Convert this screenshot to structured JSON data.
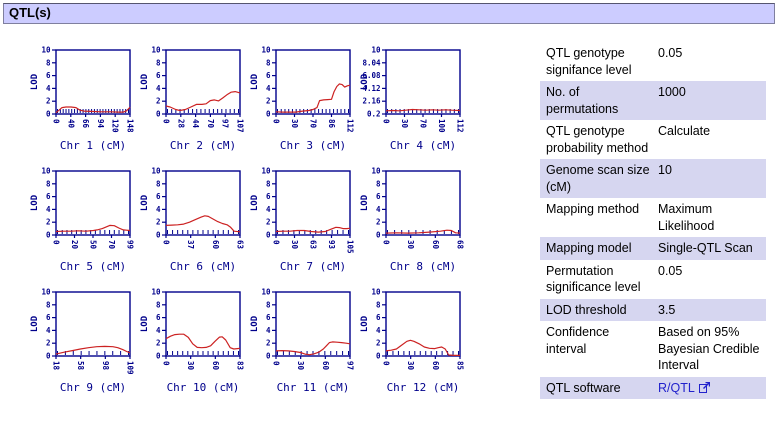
{
  "header": {
    "title": "QTL(s)"
  },
  "colors": {
    "header_bg": "#ccccff",
    "row_alt_bg": "#d6d6f0",
    "axis": "#00008b",
    "line": "#cc2222",
    "link": "#2222cc"
  },
  "chart_data": [
    {
      "type": "line",
      "title": "Chr 1 (cM)",
      "ylabel": "LOD",
      "ylim": [
        0,
        10
      ],
      "yticks": [
        "0",
        "2",
        "4",
        "6",
        "8",
        "10"
      ],
      "xticks": [
        "0",
        "40",
        "66",
        "94",
        "120",
        "148"
      ],
      "xmin": 0,
      "xmax": 148,
      "marker_ticks": 26,
      "x": [
        0,
        6,
        12,
        20,
        30,
        40,
        48,
        56,
        70,
        90,
        110,
        125,
        135,
        141,
        148
      ],
      "lod": [
        0.2,
        0.6,
        1.0,
        1.1,
        1.1,
        1.0,
        0.6,
        0.45,
        0.4,
        0.35,
        0.35,
        0.3,
        0.3,
        0.5,
        1.05
      ]
    },
    {
      "type": "line",
      "title": "Chr 2 (cM)",
      "ylabel": "LOD",
      "ylim": [
        0,
        10
      ],
      "yticks": [
        "0",
        "2",
        "4",
        "6",
        "8",
        "10"
      ],
      "xticks": [
        "0",
        "28",
        "44",
        "70",
        "97",
        "107"
      ],
      "xmin": 0,
      "xmax": 107,
      "marker_ticks": 18,
      "x": [
        0,
        6,
        14,
        20,
        28,
        36,
        44,
        52,
        58,
        64,
        70,
        76,
        82,
        88,
        94,
        100,
        107
      ],
      "lod": [
        1.25,
        1.1,
        0.7,
        0.55,
        0.7,
        1.1,
        1.5,
        1.5,
        1.6,
        2.1,
        2.2,
        2.05,
        2.5,
        3.0,
        3.4,
        3.5,
        3.3
      ]
    },
    {
      "type": "line",
      "title": "Chr 3 (cM)",
      "ylabel": "LOD",
      "ylim": [
        0,
        10
      ],
      "yticks": [
        "0",
        "2",
        "4",
        "6",
        "8",
        "10"
      ],
      "xticks": [
        "0",
        "30",
        "70",
        "86",
        "112"
      ],
      "xmin": 0,
      "xmax": 112,
      "marker_ticks": 20,
      "x": [
        0,
        10,
        20,
        30,
        40,
        50,
        56,
        62,
        66,
        72,
        78,
        84,
        88,
        92,
        96,
        100,
        104,
        108,
        112
      ],
      "lod": [
        0.35,
        0.3,
        0.3,
        0.3,
        0.45,
        0.55,
        0.7,
        1.0,
        2.1,
        2.2,
        2.25,
        2.3,
        3.5,
        4.3,
        4.7,
        4.6,
        4.2,
        4.4,
        4.5
      ]
    },
    {
      "type": "line",
      "title": "Chr 4 (cM)",
      "ylabel": "LOD",
      "ylim": [
        0,
        10
      ],
      "yticks": [
        "0.2",
        "2.16",
        "4.12",
        "6.08",
        "8.04",
        "10"
      ],
      "xticks": [
        "0",
        "30",
        "70",
        "100",
        "112"
      ],
      "xmin": 0,
      "xmax": 112,
      "marker_ticks": 18,
      "x": [
        0,
        10,
        20,
        30,
        40,
        50,
        60,
        70,
        80,
        90,
        100,
        112
      ],
      "lod": [
        0.5,
        0.55,
        0.5,
        0.6,
        0.7,
        0.65,
        0.6,
        0.65,
        0.6,
        0.65,
        0.6,
        0.55
      ]
    },
    {
      "type": "line",
      "title": "Chr 5 (cM)",
      "ylabel": "LOD",
      "ylim": [
        0,
        10
      ],
      "yticks": [
        "0",
        "2",
        "4",
        "6",
        "8",
        "10"
      ],
      "xticks": [
        "0",
        "20",
        "50",
        "70",
        "99"
      ],
      "xmin": 0,
      "xmax": 99,
      "marker_ticks": 16,
      "x": [
        0,
        10,
        20,
        30,
        40,
        50,
        55,
        62,
        68,
        72,
        78,
        84,
        90,
        99
      ],
      "lod": [
        0.55,
        0.6,
        0.6,
        0.65,
        0.6,
        0.7,
        0.8,
        1.0,
        1.3,
        1.5,
        1.45,
        1.1,
        0.8,
        0.7
      ]
    },
    {
      "type": "line",
      "title": "Chr 6 (cM)",
      "ylabel": "LOD",
      "ylim": [
        0,
        10
      ],
      "yticks": [
        "0",
        "2",
        "4",
        "6",
        "8",
        "10"
      ],
      "xticks": [
        "0",
        "37",
        "60",
        "63"
      ],
      "xmin": 0,
      "xmax": 63,
      "marker_ticks": 15,
      "x": [
        0,
        5,
        10,
        15,
        20,
        25,
        30,
        33,
        36,
        40,
        44,
        48,
        52,
        55,
        58,
        63
      ],
      "lod": [
        1.5,
        1.55,
        1.6,
        1.7,
        2.0,
        2.4,
        2.8,
        3.0,
        2.9,
        2.5,
        2.1,
        1.8,
        1.6,
        1.2,
        0.6,
        0.5
      ]
    },
    {
      "type": "line",
      "title": "Chr 7 (cM)",
      "ylabel": "LOD",
      "ylim": [
        0,
        10
      ],
      "yticks": [
        "0",
        "2",
        "4",
        "6",
        "8",
        "10"
      ],
      "xticks": [
        "0",
        "30",
        "63",
        "93",
        "105"
      ],
      "xmin": 0,
      "xmax": 105,
      "marker_ticks": 14,
      "x": [
        0,
        10,
        20,
        30,
        40,
        50,
        60,
        70,
        78,
        85,
        90,
        95,
        100,
        105
      ],
      "lod": [
        0.55,
        0.6,
        0.6,
        0.7,
        0.7,
        0.55,
        0.45,
        0.55,
        0.9,
        1.2,
        1.15,
        1.0,
        1.0,
        1.05
      ]
    },
    {
      "type": "line",
      "title": "Chr 8 (cM)",
      "ylabel": "LOD",
      "ylim": [
        0,
        10
      ],
      "yticks": [
        "0",
        "2",
        "4",
        "6",
        "8",
        "10"
      ],
      "xticks": [
        "0",
        "30",
        "60",
        "68"
      ],
      "xmin": 0,
      "xmax": 68,
      "marker_ticks": 11,
      "x": [
        0,
        10,
        20,
        30,
        40,
        50,
        56,
        60,
        64,
        68
      ],
      "lod": [
        0.3,
        0.35,
        0.3,
        0.35,
        0.45,
        0.6,
        0.75,
        0.7,
        0.35,
        0.3
      ]
    },
    {
      "type": "line",
      "title": "Chr 9 (cM)",
      "ylabel": "LOD",
      "ylim": [
        0,
        10
      ],
      "yticks": [
        "0",
        "2",
        "4",
        "6",
        "8",
        "10"
      ],
      "xticks": [
        "18",
        "58",
        "98",
        "109"
      ],
      "xmin": 18,
      "xmax": 109,
      "marker_ticks": 10,
      "x": [
        18,
        28,
        38,
        48,
        58,
        68,
        78,
        88,
        94,
        100,
        105,
        109
      ],
      "lod": [
        0.3,
        0.6,
        0.85,
        1.1,
        1.3,
        1.45,
        1.5,
        1.45,
        1.3,
        1.0,
        0.7,
        0.5
      ]
    },
    {
      "type": "line",
      "title": "Chr 10 (cM)",
      "ylabel": "LOD",
      "ylim": [
        0,
        10
      ],
      "yticks": [
        "0",
        "2",
        "4",
        "6",
        "8",
        "10"
      ],
      "xticks": [
        "0",
        "30",
        "60",
        "83"
      ],
      "xmin": 0,
      "xmax": 83,
      "marker_ticks": 15,
      "x": [
        0,
        5,
        10,
        15,
        20,
        25,
        30,
        35,
        40,
        45,
        50,
        55,
        60,
        63,
        67,
        72,
        76,
        80,
        83
      ],
      "lod": [
        2.7,
        3.1,
        3.35,
        3.4,
        3.4,
        2.9,
        1.9,
        1.35,
        1.3,
        1.35,
        1.6,
        2.3,
        2.95,
        3.0,
        2.5,
        1.3,
        1.1,
        1.15,
        1.2
      ]
    },
    {
      "type": "line",
      "title": "Chr 11 (cM)",
      "ylabel": "LOD",
      "ylim": [
        0,
        10
      ],
      "yticks": [
        "0",
        "2",
        "4",
        "6",
        "8",
        "10"
      ],
      "xticks": [
        "0",
        "30",
        "60",
        "97"
      ],
      "xmin": 0,
      "xmax": 97,
      "marker_ticks": 13,
      "x": [
        0,
        8,
        16,
        24,
        32,
        38,
        44,
        50,
        56,
        62,
        66,
        70,
        74,
        80,
        86,
        92,
        97
      ],
      "lod": [
        0.8,
        0.85,
        0.8,
        0.7,
        0.55,
        0.3,
        0.2,
        0.35,
        0.6,
        1.1,
        1.6,
        2.1,
        2.2,
        2.15,
        2.1,
        2.0,
        1.9
      ]
    },
    {
      "type": "line",
      "title": "Chr 12 (cM)",
      "ylabel": "LOD",
      "ylim": [
        0,
        10
      ],
      "yticks": [
        "0",
        "2",
        "4",
        "6",
        "8",
        "10"
      ],
      "xticks": [
        "0",
        "30",
        "60",
        "85"
      ],
      "xmin": 0,
      "xmax": 85,
      "marker_ticks": 14,
      "x": [
        0,
        6,
        12,
        18,
        24,
        28,
        32,
        38,
        44,
        50,
        56,
        60,
        64,
        68,
        72,
        78,
        85
      ],
      "lod": [
        0.8,
        0.9,
        1.1,
        1.7,
        2.3,
        2.45,
        2.3,
        1.9,
        1.4,
        1.2,
        1.15,
        1.3,
        1.4,
        1.1,
        0.15,
        0.1,
        0.1
      ]
    }
  ],
  "settings_table": {
    "rows": [
      {
        "label": "QTL genotype signifance level",
        "value": "0.05"
      },
      {
        "label": "No. of permutations",
        "value": "1000"
      },
      {
        "label": "QTL genotype probability method",
        "value": "Calculate"
      },
      {
        "label": "Genome scan size (cM)",
        "value": "10"
      },
      {
        "label": "Mapping method",
        "value": "Maximum Likelihood"
      },
      {
        "label": "Mapping model",
        "value": "Single-QTL Scan"
      },
      {
        "label": "Permutation significance level",
        "value": "0.05"
      },
      {
        "label": "LOD threshold",
        "value": "3.5"
      },
      {
        "label": "Confidence interval",
        "value": "Based on 95% Bayesian Credible Interval"
      },
      {
        "label": "QTL software",
        "value": "R/QTL",
        "is_link": true,
        "icon": "external-link-icon"
      }
    ]
  }
}
